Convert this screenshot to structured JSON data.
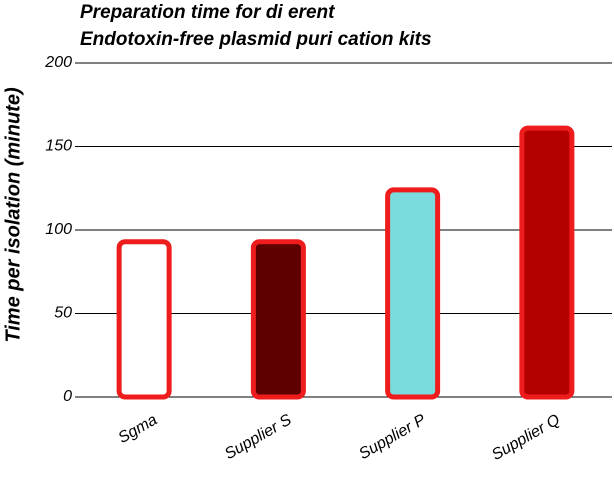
{
  "chart_data": {
    "type": "bar",
    "title": [
      "Preparation time for di   erent",
      "Endotoxin-free plasmid puri   cation kits"
    ],
    "y_label": "Time per isolation (minute)",
    "categories": [
      "Sgma",
      "Supplier S",
      "Supplier P",
      "Supplier Q"
    ],
    "values": [
      93,
      93,
      124,
      161
    ],
    "colors": [
      "#ffffff",
      "#5e0000",
      "#7adcdc",
      "#b50000"
    ],
    "edgecolor": "#ee1c1c",
    "ylim": [
      0,
      200
    ],
    "yticks": [
      0,
      50,
      100,
      150,
      200
    ],
    "grid": true
  }
}
